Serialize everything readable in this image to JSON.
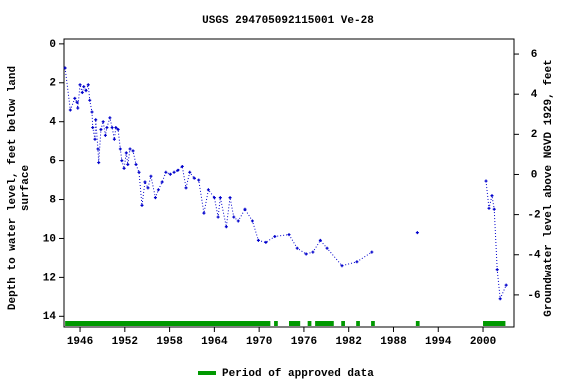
{
  "chart_data": {
    "type": "line",
    "title": "USGS 294705092115001 Ve-28",
    "y_label": [
      "Depth to water level, feet below land",
      "surface"
    ],
    "y2_label": "Groundwater level above NGVD 1929, feet",
    "x": [
      1944.0,
      1944.7,
      1945.3,
      1945.6,
      1945.7,
      1946.0,
      1946.3,
      1946.5,
      1946.8,
      1947.1,
      1947.3,
      1947.6,
      1947.7,
      1948.0,
      1948.1,
      1948.4,
      1948.5,
      1948.8,
      1949.1,
      1949.4,
      1949.6,
      1950.0,
      1950.3,
      1950.6,
      1950.8,
      1951.1,
      1951.4,
      1951.6,
      1951.9,
      1952.2,
      1952.4,
      1952.7,
      1953.1,
      1953.5,
      1953.9,
      1954.3,
      1954.7,
      1955.1,
      1955.5,
      1956.1,
      1956.5,
      1957.0,
      1957.5,
      1958.1,
      1958.6,
      1959.1,
      1959.7,
      1960.2,
      1960.7,
      1961.3,
      1961.9,
      1962.6,
      1963.2,
      1964.0,
      1964.5,
      1964.8,
      1965.6,
      1966.1,
      1966.6,
      1967.2,
      1968.1,
      1969.1,
      1969.9,
      1970.9,
      1972.1,
      1974.0,
      1975.1,
      1976.3,
      1977.2,
      1978.2,
      1979.1,
      1981.1,
      1983.1,
      1985.1,
      null,
      1991.2,
      null,
      2000.4,
      2000.8,
      2001.2,
      2001.5,
      2001.9,
      2002.3,
      2003.1
    ],
    "series": [
      {
        "color": "#0000cc",
        "values": [
          1.24,
          3.4,
          2.8,
          3.0,
          3.3,
          2.1,
          2.5,
          2.2,
          2.4,
          2.1,
          2.9,
          3.5,
          4.3,
          4.9,
          3.9,
          5.4,
          6.1,
          4.4,
          4.0,
          4.7,
          4.3,
          3.8,
          4.3,
          4.9,
          4.3,
          4.4,
          5.4,
          6.0,
          6.4,
          5.6,
          6.2,
          5.4,
          5.5,
          6.2,
          6.6,
          8.3,
          7.1,
          7.4,
          6.8,
          7.9,
          7.5,
          7.1,
          6.6,
          6.7,
          6.6,
          6.5,
          6.3,
          7.4,
          6.6,
          6.9,
          7.0,
          8.7,
          7.5,
          7.9,
          8.9,
          7.9,
          9.4,
          7.9,
          8.9,
          9.1,
          8.5,
          9.1,
          10.1,
          10.2,
          9.9,
          9.8,
          10.5,
          10.8,
          10.7,
          10.1,
          10.5,
          11.4,
          11.2,
          10.7,
          null,
          9.7,
          null,
          7.05,
          8.45,
          7.8,
          8.5,
          11.6,
          13.1,
          12.4
        ]
      }
    ],
    "xlim": [
      1943.85,
      2004.15
    ],
    "xticks": [
      1946,
      1952,
      1958,
      1964,
      1970,
      1976,
      1982,
      1988,
      1994,
      2000
    ],
    "ylim": [
      14.55,
      -0.25
    ],
    "yticks": [
      0,
      2,
      4,
      6,
      8,
      10,
      12,
      14
    ],
    "y2lim": [
      -7.6,
      6.75
    ],
    "y2ticks": [
      -6,
      -4,
      -2,
      0,
      2,
      4,
      6
    ],
    "approved_periods": {
      "name": "Period of approved data",
      "color": "#009900",
      "ranges": [
        [
          1944.0,
          1971.5
        ],
        [
          1972.0,
          1972.5
        ],
        [
          1974.0,
          1975.5
        ],
        [
          1976.5,
          1977.0
        ],
        [
          1977.5,
          1980.0
        ],
        [
          1981.0,
          1981.5
        ],
        [
          1983.0,
          1983.5
        ],
        [
          1985.0,
          1985.5
        ],
        [
          1991.0,
          1991.5
        ],
        [
          2000.0,
          2003.0
        ]
      ]
    }
  }
}
